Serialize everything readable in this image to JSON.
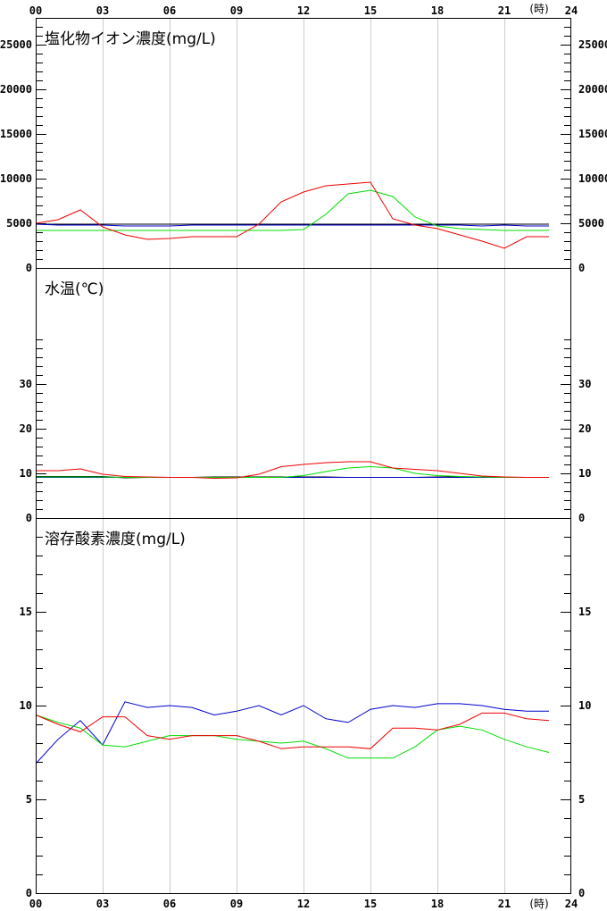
{
  "x_axis": {
    "ticks": [
      "00",
      "03",
      "06",
      "09",
      "12",
      "15",
      "18",
      "21"
    ],
    "end_label": "24",
    "unit": "(時)",
    "range": [
      0,
      24
    ]
  },
  "colors": {
    "red": "#ee0000",
    "green": "#00dd00",
    "blue": "#0000cc",
    "grid": "#cccccc"
  },
  "chart_data": [
    {
      "type": "line",
      "title": "塩化物イオン濃度(mg/L)",
      "x": [
        0,
        1,
        2,
        3,
        4,
        5,
        6,
        7,
        8,
        9,
        10,
        11,
        12,
        13,
        14,
        15,
        16,
        17,
        18,
        19,
        20,
        21,
        22,
        23
      ],
      "ylim": [
        0,
        28000
      ],
      "yticks": [
        0,
        5000,
        10000,
        15000,
        20000,
        25000
      ],
      "ytick_labels": [
        "0",
        "5000",
        "10000",
        "15000",
        "20000",
        "25000"
      ],
      "minor_step": 1000,
      "series": [
        {
          "color": "red",
          "values": [
            5000,
            5400,
            6500,
            4600,
            3700,
            3200,
            3300,
            3500,
            3500,
            3500,
            4900,
            7400,
            8500,
            9200,
            9400,
            9600,
            5500,
            4800,
            4400,
            3700,
            3000,
            2200,
            3500,
            3500
          ]
        },
        {
          "color": "green",
          "values": [
            4200,
            4200,
            4200,
            4200,
            4200,
            4200,
            4200,
            4200,
            4200,
            4200,
            4200,
            4200,
            4300,
            6000,
            8300,
            8700,
            8000,
            5700,
            4700,
            4400,
            4300,
            4200,
            4200,
            4200
          ]
        },
        {
          "color": "blue",
          "values": [
            4900,
            4800,
            4800,
            4800,
            4700,
            4700,
            4700,
            4800,
            4800,
            4800,
            4800,
            4800,
            4800,
            4800,
            4800,
            4800,
            4800,
            4800,
            4800,
            4800,
            4700,
            4800,
            4700,
            4700
          ]
        },
        {
          "color": "black",
          "values": [
            4900,
            4900,
            4900,
            4900,
            4900,
            4900,
            4900,
            4900,
            4900,
            4900,
            4900,
            4900,
            4900,
            4900,
            4900,
            4900,
            4900,
            4900,
            4900,
            4900,
            4900,
            4900,
            4900,
            4900
          ]
        }
      ]
    },
    {
      "type": "line",
      "title": "水温(℃)",
      "x": [
        0,
        1,
        2,
        3,
        4,
        5,
        6,
        7,
        8,
        9,
        10,
        11,
        12,
        13,
        14,
        15,
        16,
        17,
        18,
        19,
        20,
        21,
        22,
        23
      ],
      "ylim": [
        0,
        56
      ],
      "yticks": [
        0,
        10,
        20,
        30
      ],
      "ytick_labels": [
        "0",
        "10",
        "20",
        "30"
      ],
      "minor_step": 2,
      "minor_max": 40,
      "series": [
        {
          "color": "red",
          "values": [
            10.6,
            10.6,
            11.0,
            9.8,
            9.3,
            9.2,
            9.1,
            9.1,
            8.9,
            9.0,
            9.8,
            11.5,
            12.0,
            12.4,
            12.6,
            12.6,
            11.2,
            10.9,
            10.6,
            10.0,
            9.4,
            9.2,
            9.1,
            9.1
          ]
        },
        {
          "color": "green",
          "values": [
            9.2,
            9.2,
            9.2,
            9.2,
            9.1,
            9.1,
            9.1,
            9.1,
            9.1,
            9.1,
            9.1,
            9.1,
            9.5,
            10.4,
            11.2,
            11.5,
            11.2,
            10.0,
            9.5,
            9.3,
            9.2,
            9.1,
            9.1,
            9.1
          ]
        },
        {
          "color": "blue",
          "values": [
            9.1,
            9.1,
            9.1,
            9.1,
            9.1,
            9.1,
            9.1,
            9.1,
            9.1,
            9.1,
            9.1,
            9.1,
            9.1,
            9.1,
            9.1,
            9.1,
            9.1,
            9.1,
            9.1,
            9.1,
            9.1,
            9.1,
            9.1,
            9.1
          ]
        },
        {
          "color": "black",
          "values": [
            9.3,
            9.3,
            9.3,
            9.3,
            9.0,
            9.1,
            9.1,
            9.1,
            9.2,
            9.2,
            9.2,
            9.2,
            9.2,
            9.2,
            9.1,
            9.1,
            9.1,
            9.1,
            9.2,
            9.2,
            9.2,
            9.1,
            9.1,
            9.1
          ]
        }
      ]
    },
    {
      "type": "line",
      "title": "溶存酸素濃度(mg/L)",
      "x": [
        0,
        1,
        2,
        3,
        4,
        5,
        6,
        7,
        8,
        9,
        10,
        11,
        12,
        13,
        14,
        15,
        16,
        17,
        18,
        19,
        20,
        21,
        22,
        23
      ],
      "ylim": [
        0,
        20
      ],
      "yticks": [
        0,
        5,
        10,
        15
      ],
      "ytick_labels": [
        "0",
        "5",
        "10",
        "15"
      ],
      "minor_step": 1,
      "series": [
        {
          "color": "red",
          "values": [
            9.5,
            9.0,
            8.6,
            9.4,
            9.4,
            8.4,
            8.2,
            8.4,
            8.4,
            8.4,
            8.1,
            7.7,
            7.8,
            7.8,
            7.8,
            7.7,
            8.8,
            8.8,
            8.7,
            9.0,
            9.6,
            9.6,
            9.3,
            9.2
          ]
        },
        {
          "color": "green",
          "values": [
            9.5,
            9.1,
            8.8,
            7.9,
            7.8,
            8.1,
            8.4,
            8.4,
            8.4,
            8.2,
            8.1,
            8.0,
            8.1,
            7.7,
            7.2,
            7.2,
            7.2,
            7.8,
            8.7,
            8.9,
            8.7,
            8.2,
            7.8,
            7.5
          ]
        },
        {
          "color": "blue",
          "values": [
            6.9,
            8.2,
            9.2,
            7.9,
            10.2,
            9.9,
            10.0,
            9.9,
            9.5,
            9.7,
            10.0,
            9.5,
            10.0,
            9.3,
            9.1,
            9.8,
            10.0,
            9.9,
            10.1,
            10.1,
            10.0,
            9.8,
            9.7,
            9.7
          ]
        }
      ]
    }
  ]
}
